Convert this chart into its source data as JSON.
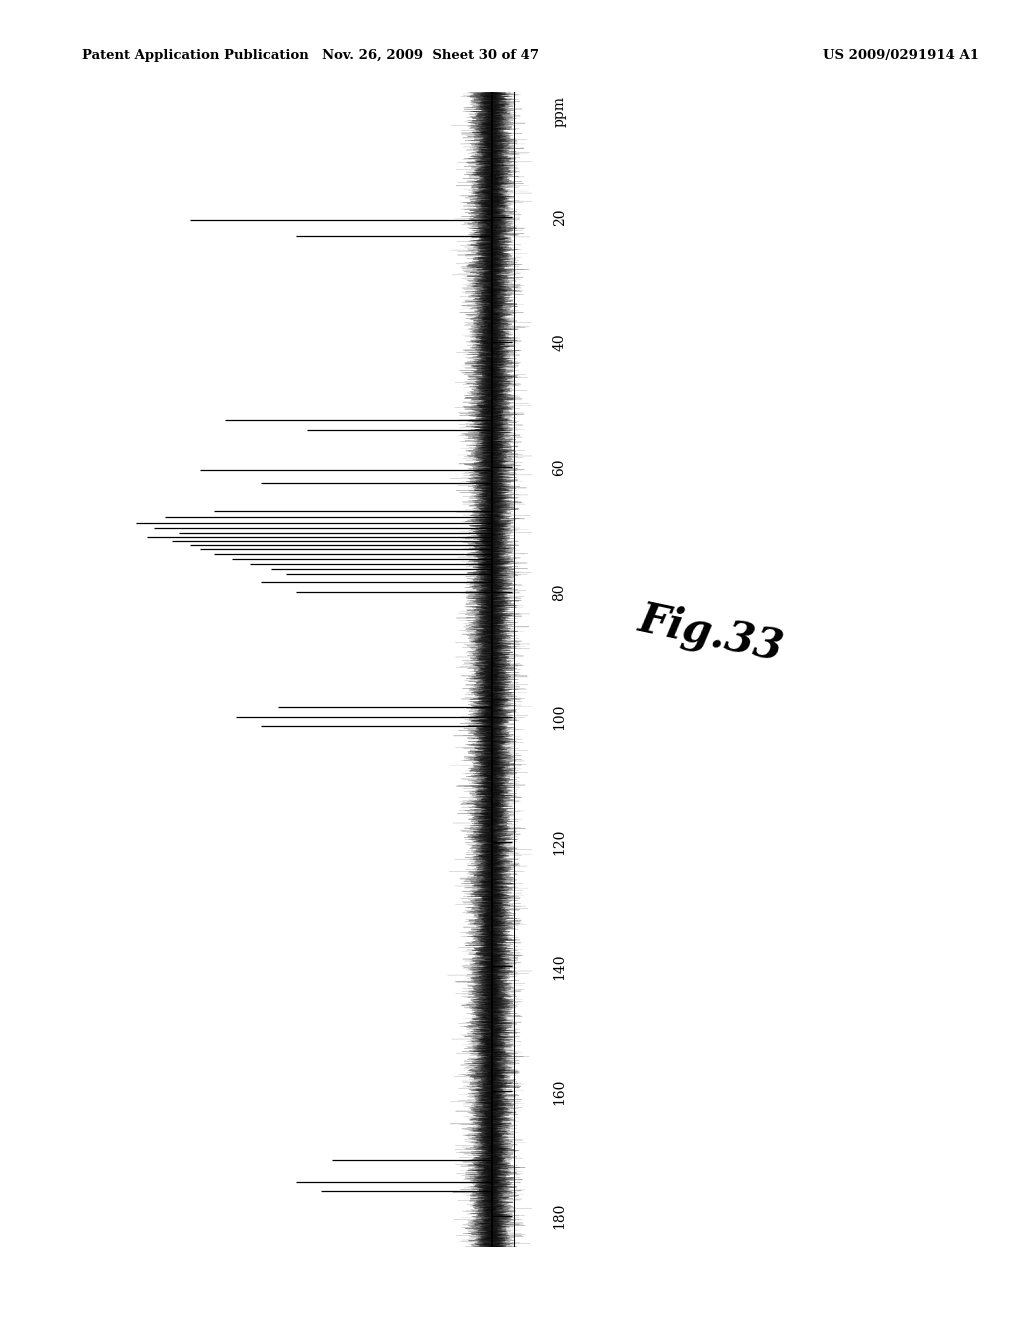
{
  "title_line1": "Patent Application Publication",
  "title_date": "Nov. 26, 2009",
  "title_sheet": "Sheet 30 of 47",
  "title_patent": "US 2009/0291914 A1",
  "fig_label": "Fig.33",
  "ppm_label": "ppm",
  "ppm_min": 0,
  "ppm_max": 185,
  "y_ticks": [
    20,
    40,
    60,
    80,
    100,
    120,
    140,
    160,
    180
  ],
  "background_color": "#ffffff",
  "spectrum_color": "#000000",
  "peaks": [
    {
      "ppm": 20.5,
      "intensity": 0.85
    },
    {
      "ppm": 23.0,
      "intensity": 0.55
    },
    {
      "ppm": 52.5,
      "intensity": 0.75
    },
    {
      "ppm": 54.0,
      "intensity": 0.52
    },
    {
      "ppm": 60.5,
      "intensity": 0.82
    },
    {
      "ppm": 62.5,
      "intensity": 0.65
    },
    {
      "ppm": 67.0,
      "intensity": 0.78
    },
    {
      "ppm": 68.0,
      "intensity": 0.92
    },
    {
      "ppm": 69.0,
      "intensity": 1.0
    },
    {
      "ppm": 69.8,
      "intensity": 0.95
    },
    {
      "ppm": 70.5,
      "intensity": 0.88
    },
    {
      "ppm": 71.2,
      "intensity": 0.97
    },
    {
      "ppm": 71.8,
      "intensity": 0.9
    },
    {
      "ppm": 72.5,
      "intensity": 0.85
    },
    {
      "ppm": 73.2,
      "intensity": 0.82
    },
    {
      "ppm": 74.0,
      "intensity": 0.78
    },
    {
      "ppm": 74.8,
      "intensity": 0.73
    },
    {
      "ppm": 75.5,
      "intensity": 0.68
    },
    {
      "ppm": 76.3,
      "intensity": 0.62
    },
    {
      "ppm": 77.2,
      "intensity": 0.58
    },
    {
      "ppm": 78.5,
      "intensity": 0.65
    },
    {
      "ppm": 80.0,
      "intensity": 0.55
    },
    {
      "ppm": 98.5,
      "intensity": 0.6
    },
    {
      "ppm": 100.0,
      "intensity": 0.72
    },
    {
      "ppm": 101.5,
      "intensity": 0.65
    },
    {
      "ppm": 171.0,
      "intensity": 0.45
    },
    {
      "ppm": 174.5,
      "intensity": 0.55
    },
    {
      "ppm": 176.0,
      "intensity": 0.48
    }
  ]
}
